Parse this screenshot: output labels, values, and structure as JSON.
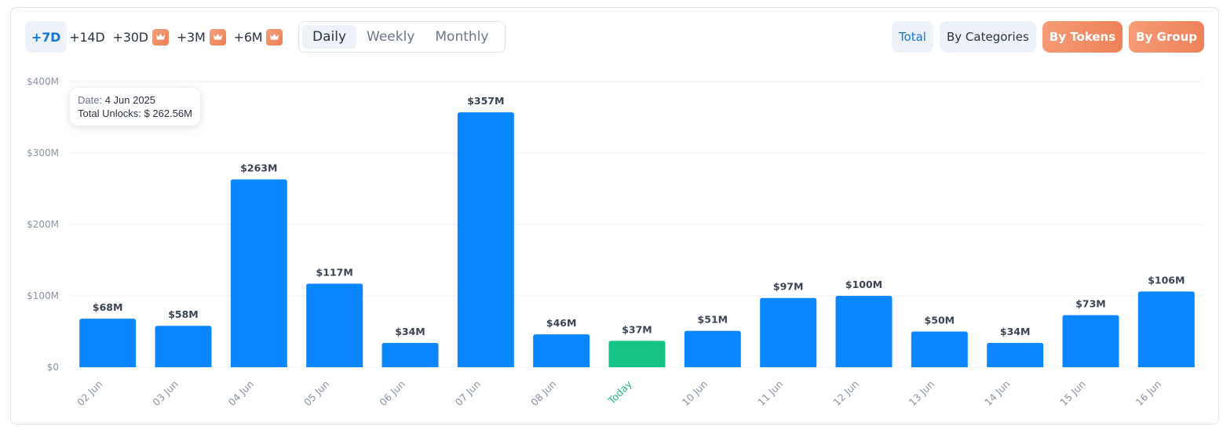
{
  "toolbar": {
    "ranges": [
      {
        "label": "+7D",
        "active": true,
        "premium": false
      },
      {
        "label": "+14D",
        "active": false,
        "premium": false
      },
      {
        "label": "+30D",
        "active": false,
        "premium": true
      },
      {
        "label": "+3M",
        "active": false,
        "premium": true
      },
      {
        "label": "+6M",
        "active": false,
        "premium": true
      }
    ],
    "intervals": [
      {
        "label": "Daily",
        "active": true
      },
      {
        "label": "Weekly",
        "active": false
      },
      {
        "label": "Monthly",
        "active": false
      }
    ],
    "views": [
      {
        "label": "Total",
        "active": true,
        "premium": false
      },
      {
        "label": "By Categories",
        "active": false,
        "premium": false
      },
      {
        "label": "By Tokens",
        "active": false,
        "premium": true
      },
      {
        "label": "By Group",
        "active": false,
        "premium": true
      }
    ],
    "premium_icon": "crown-icon"
  },
  "tooltip": {
    "date_key": "Date:",
    "date_value": "4 Jun 2025",
    "total_key": "Total Unlocks:",
    "total_value": "$ 262.56M"
  },
  "colors": {
    "bar": "#0a87ff",
    "bar_today": "#17c384",
    "today_label": "#22b877",
    "accent": "#1677d2",
    "premium": "#ee8159"
  },
  "chart_data": {
    "type": "bar",
    "title": "",
    "xlabel": "",
    "ylabel": "",
    "categories": [
      "02 Jun",
      "03 Jun",
      "04 Jun",
      "05 Jun",
      "06 Jun",
      "07 Jun",
      "08 Jun",
      "Today",
      "10 Jun",
      "11 Jun",
      "12 Jun",
      "13 Jun",
      "14 Jun",
      "15 Jun",
      "16 Jun"
    ],
    "values": [
      68,
      58,
      263,
      117,
      34,
      357,
      46,
      37,
      51,
      97,
      100,
      50,
      34,
      73,
      106
    ],
    "value_labels": [
      "$68M",
      "$58M",
      "$263M",
      "$117M",
      "$34M",
      "$357M",
      "$46M",
      "$37M",
      "$51M",
      "$97M",
      "$100M",
      "$50M",
      "$34M",
      "$73M",
      "$106M"
    ],
    "highlight_index": 7,
    "units": "USD millions",
    "ylim": [
      0,
      400
    ],
    "yticks": [
      0,
      100,
      200,
      300,
      400
    ],
    "ytick_labels": [
      "$0",
      "$100M",
      "$200M",
      "$300M",
      "$400M"
    ],
    "grid": true,
    "legend": "none"
  }
}
